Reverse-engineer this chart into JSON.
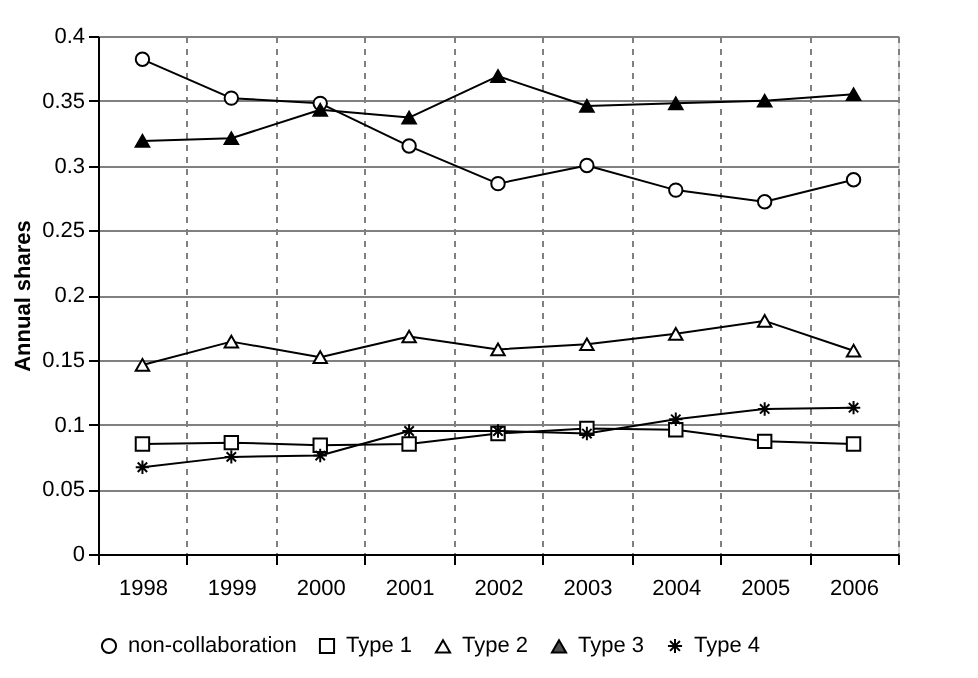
{
  "chart_data": {
    "type": "line",
    "ylabel": "Annual shares",
    "categories": [
      "1998",
      "1999",
      "2000",
      "2001",
      "2002",
      "2003",
      "2004",
      "2005",
      "2006"
    ],
    "series": [
      {
        "name": "non-collaboration",
        "color": "#000000",
        "marker": "circle",
        "values": [
          0.382,
          0.352,
          0.348,
          0.315,
          0.286,
          0.3,
          0.281,
          0.272,
          0.289
        ]
      },
      {
        "name": "Type 1",
        "color": "#000000",
        "marker": "square",
        "values": [
          0.085,
          0.086,
          0.084,
          0.085,
          0.093,
          0.097,
          0.096,
          0.087,
          0.085
        ]
      },
      {
        "name": "Type 2",
        "color": "#000000",
        "marker": "triangle",
        "values": [
          0.146,
          0.164,
          0.152,
          0.168,
          0.158,
          0.162,
          0.17,
          0.18,
          0.157
        ]
      },
      {
        "name": "Type 3",
        "color": "#000000",
        "marker": "triangle",
        "values": [
          0.319,
          0.321,
          0.343,
          0.337,
          0.369,
          0.346,
          0.348,
          0.35,
          0.355
        ]
      },
      {
        "name": "Type 4",
        "color": "#000000",
        "marker": "cross",
        "values": [
          0.067,
          0.075,
          0.076,
          0.095,
          0.095,
          0.093,
          0.104,
          0.112,
          0.113
        ]
      }
    ],
    "ylim": [
      0,
      0.4
    ],
    "yticks": [
      0,
      0.05,
      0.1,
      0.15,
      0.2,
      0.25,
      0.3,
      0.35,
      0.4
    ],
    "grid": true,
    "legend": "bottom",
    "line_style": "solid"
  }
}
